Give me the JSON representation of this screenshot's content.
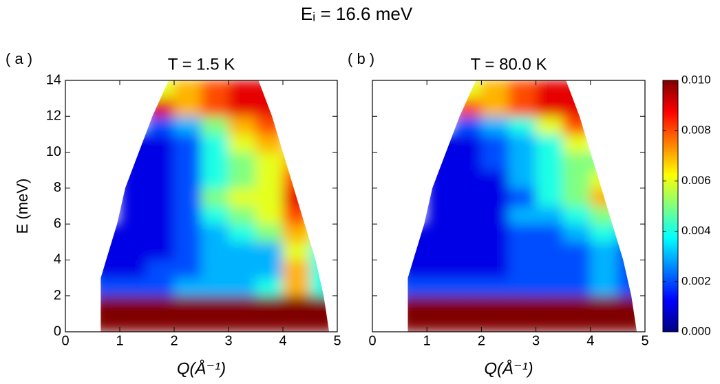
{
  "title": "Eᵢ = 16.6 meV",
  "colorbar": {
    "lim": [
      0,
      0.01
    ],
    "ticks": [
      {
        "value": 0,
        "label": "0.000"
      },
      0.002,
      0.004,
      0.006,
      0.008,
      {
        "value": 0.01,
        "label": "0.010"
      }
    ]
  },
  "chart_data": [
    {
      "type": "heatmap",
      "panel_label": "( a )",
      "title": "T = 1.5 K",
      "xlabel": "Q(Å⁻¹)",
      "ylabel": "E (meV)",
      "xlim": [
        0,
        5
      ],
      "ylim": [
        0,
        14
      ],
      "xticks": [
        0,
        1,
        2,
        3,
        4,
        5
      ],
      "yticks": [
        0,
        2,
        4,
        6,
        8,
        10,
        12,
        14
      ],
      "ytick_labels": true,
      "x_edges": [
        0.5,
        1,
        1.5,
        2,
        2.5,
        3,
        3.5,
        4,
        4.5,
        5
      ],
      "y_edges": [
        0,
        1,
        2,
        3,
        4,
        5,
        6,
        7,
        8,
        9,
        10,
        11,
        12,
        13,
        14
      ],
      "z": [
        [
          0.01,
          0.01,
          0.01,
          0.01,
          0.01,
          0.01,
          0.01,
          0.01,
          0.01
        ],
        [
          0.01,
          0.01,
          0.01,
          0.01,
          0.01,
          0.01,
          0.01,
          0.01,
          0.01
        ],
        [
          0.002,
          0.002,
          0.002,
          0.003,
          0.003,
          0.003,
          0.004,
          0.007,
          0.004
        ],
        [
          0.001,
          0.001,
          0.002,
          0.002,
          0.003,
          0.003,
          0.003,
          0.007,
          0.004
        ],
        [
          0.001,
          0.001,
          0.001,
          0.002,
          0.003,
          0.003,
          0.003,
          0.006,
          0.004
        ],
        [
          0.001,
          0.001,
          0.001,
          0.002,
          0.003,
          0.004,
          0.005,
          0.007,
          0.006
        ],
        [
          null,
          0.001,
          0.001,
          0.002,
          0.004,
          0.005,
          0.006,
          0.008,
          null
        ],
        [
          null,
          0.001,
          0.001,
          0.002,
          0.005,
          0.006,
          0.006,
          0.009,
          null
        ],
        [
          null,
          0.001,
          0.001,
          0.002,
          0.004,
          0.005,
          0.006,
          0.008,
          null
        ],
        [
          null,
          0.001,
          0.001,
          0.002,
          0.004,
          0.005,
          0.006,
          0.007,
          null
        ],
        [
          null,
          0.001,
          0.001,
          0.002,
          0.004,
          0.006,
          0.007,
          null,
          null
        ],
        [
          null,
          null,
          0.002,
          0.003,
          0.005,
          0.007,
          0.008,
          null,
          null
        ],
        [
          null,
          null,
          0.009,
          0.007,
          0.008,
          0.009,
          0.009,
          null,
          null
        ],
        [
          null,
          null,
          0.006,
          0.007,
          0.008,
          0.009,
          0.009,
          null,
          null
        ]
      ]
    },
    {
      "type": "heatmap",
      "panel_label": "( b )",
      "title": "T = 80.0 K",
      "xlabel": "Q(Å⁻¹)",
      "xlim": [
        0,
        5
      ],
      "ylim": [
        0,
        14
      ],
      "xticks": [
        0,
        1,
        2,
        3,
        4,
        5
      ],
      "yticks": [
        0,
        2,
        4,
        6,
        8,
        10,
        12,
        14
      ],
      "ytick_labels": false,
      "x_edges": [
        0.5,
        1,
        1.5,
        2,
        2.5,
        3,
        3.5,
        4,
        4.5,
        5
      ],
      "y_edges": [
        0,
        1,
        2,
        3,
        4,
        5,
        6,
        7,
        8,
        9,
        10,
        11,
        12,
        13,
        14
      ],
      "z": [
        [
          0.01,
          0.01,
          0.01,
          0.01,
          0.01,
          0.01,
          0.01,
          0.01,
          0.01
        ],
        [
          0.01,
          0.01,
          0.01,
          0.01,
          0.01,
          0.01,
          0.01,
          0.01,
          0.01
        ],
        [
          0.002,
          0.002,
          0.002,
          0.002,
          0.002,
          0.002,
          0.002,
          0.003,
          0.002
        ],
        [
          0.001,
          0.001,
          0.001,
          0.001,
          0.002,
          0.002,
          0.002,
          0.003,
          0.002
        ],
        [
          0.001,
          0.001,
          0.001,
          0.001,
          0.002,
          0.002,
          0.002,
          0.003,
          0.002
        ],
        [
          0.001,
          0.001,
          0.001,
          0.001,
          0.002,
          0.002,
          0.003,
          0.004,
          0.003
        ],
        [
          null,
          0.001,
          0.001,
          0.001,
          0.003,
          0.003,
          0.004,
          0.005,
          null
        ],
        [
          null,
          0.001,
          0.001,
          0.001,
          0.002,
          0.004,
          0.005,
          0.007,
          null
        ],
        [
          null,
          0.001,
          0.001,
          0.001,
          0.003,
          0.004,
          0.005,
          0.006,
          null
        ],
        [
          null,
          0.001,
          0.001,
          0.002,
          0.003,
          0.004,
          0.005,
          0.005,
          null
        ],
        [
          null,
          0.001,
          0.001,
          0.002,
          0.003,
          0.004,
          0.006,
          null,
          null
        ],
        [
          null,
          null,
          0.002,
          0.003,
          0.004,
          0.006,
          0.008,
          null,
          null
        ],
        [
          null,
          null,
          0.008,
          0.007,
          0.008,
          0.009,
          0.009,
          null,
          null
        ],
        [
          null,
          null,
          0.006,
          0.007,
          0.008,
          0.009,
          0.009,
          null,
          null
        ]
      ]
    }
  ]
}
